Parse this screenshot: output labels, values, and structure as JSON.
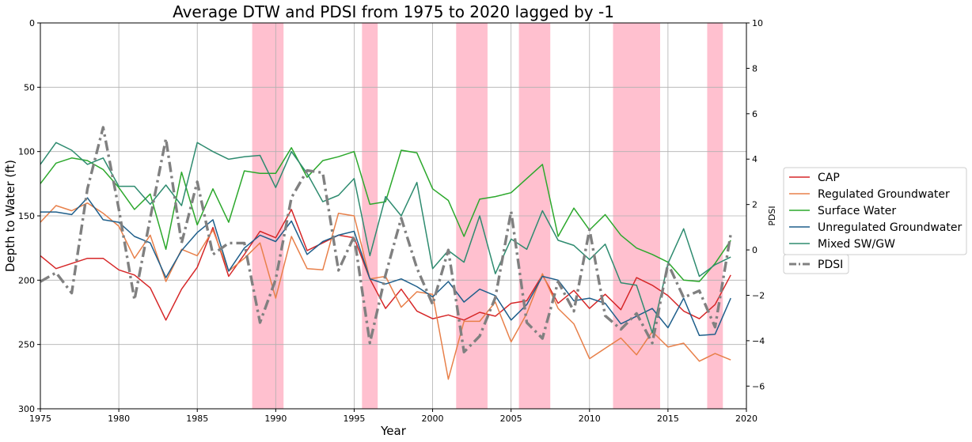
{
  "chart_data": {
    "type": "line",
    "title": "Average DTW and PDSI from 1975 to 2020 lagged by -1",
    "xlabel": "Year",
    "ylabel": "Depth to Water (ft)",
    "y2label": "PDSI",
    "xlim": [
      1975,
      2020
    ],
    "ylim": [
      300,
      0
    ],
    "y2lim": [
      -7,
      10
    ],
    "x_ticks": [
      1975,
      1980,
      1985,
      1990,
      1995,
      2000,
      2005,
      2010,
      2015,
      2020
    ],
    "y_ticks": [
      0,
      50,
      100,
      150,
      200,
      250,
      300
    ],
    "y2_ticks": [
      -6,
      -4,
      -2,
      0,
      2,
      4,
      6,
      8,
      10
    ],
    "grid": true,
    "legend_placement": "outside-right",
    "drought_spans": [
      [
        1988.5,
        1990.5
      ],
      [
        1995.5,
        1996.5
      ],
      [
        2001.5,
        2003.5
      ],
      [
        2005.5,
        2007.5
      ],
      [
        2011.5,
        2014.5
      ],
      [
        2017.5,
        2018.5
      ]
    ],
    "drought_color": "#ffc0cf",
    "x": [
      1975,
      1976,
      1977,
      1978,
      1979,
      1980,
      1981,
      1982,
      1983,
      1984,
      1985,
      1986,
      1987,
      1988,
      1989,
      1990,
      1991,
      1992,
      1993,
      1994,
      1995,
      1996,
      1997,
      1998,
      1999,
      2000,
      2001,
      2002,
      2003,
      2004,
      2005,
      2006,
      2007,
      2008,
      2009,
      2010,
      2011,
      2012,
      2013,
      2014,
      2015,
      2016,
      2017,
      2018,
      2019
    ],
    "series": [
      {
        "name": "CAP",
        "axis": "left",
        "color": "#d62728",
        "style": "solid",
        "values": [
          181,
          191,
          187,
          183,
          183,
          192,
          196,
          206,
          231,
          207,
          190,
          159,
          197,
          180,
          162,
          167,
          145,
          177,
          171,
          165,
          167,
          199,
          222,
          207,
          224,
          230,
          227,
          231,
          225,
          228,
          218,
          216,
          196,
          218,
          208,
          222,
          211,
          223,
          198,
          204,
          212,
          224,
          230,
          219,
          196
        ]
      },
      {
        "name": "Regulated Groundwater",
        "axis": "left",
        "color": "#e8804a",
        "style": "solid",
        "values": [
          155,
          142,
          146,
          140,
          148,
          158,
          183,
          165,
          201,
          176,
          181,
          161,
          193,
          183,
          171,
          214,
          166,
          191,
          192,
          148,
          150,
          199,
          197,
          221,
          209,
          211,
          277,
          232,
          232,
          217,
          248,
          226,
          195,
          222,
          234,
          261,
          253,
          245,
          258,
          240,
          252,
          249,
          263,
          257,
          262
        ]
      },
      {
        "name": "Surface Water",
        "axis": "left",
        "color": "#2ca82c",
        "style": "solid",
        "values": [
          125,
          109,
          105,
          107,
          114,
          128,
          145,
          133,
          176,
          116,
          157,
          129,
          155,
          115,
          117,
          117,
          97,
          120,
          107,
          104,
          100,
          141,
          139,
          99,
          101,
          129,
          138,
          166,
          137,
          135,
          132,
          121,
          110,
          166,
          144,
          161,
          149,
          165,
          175,
          180,
          186,
          200,
          201,
          187,
          169
        ]
      },
      {
        "name": "Unregulated Groundwater",
        "axis": "left",
        "color": "#1f5f8b",
        "style": "solid",
        "values": [
          147,
          147,
          149,
          136,
          153,
          155,
          166,
          171,
          198,
          177,
          163,
          153,
          193,
          175,
          165,
          170,
          154,
          180,
          170,
          165,
          162,
          199,
          203,
          199,
          205,
          213,
          201,
          217,
          207,
          212,
          231,
          219,
          197,
          200,
          216,
          214,
          218,
          234,
          228,
          222,
          237,
          214,
          243,
          242,
          214
        ]
      },
      {
        "name": "Mixed SW/GW",
        "axis": "left",
        "color": "#2e8b6f",
        "style": "solid",
        "values": [
          110,
          93,
          99,
          110,
          105,
          127,
          127,
          141,
          126,
          142,
          93,
          100,
          106,
          104,
          103,
          128,
          100,
          117,
          139,
          134,
          121,
          181,
          135,
          150,
          124,
          191,
          177,
          186,
          150,
          195,
          168,
          176,
          146,
          169,
          173,
          184,
          172,
          202,
          204,
          241,
          187,
          160,
          197,
          188,
          182
        ]
      },
      {
        "name": "PDSI",
        "axis": "right",
        "color": "#808080",
        "style": "dashdot",
        "values": [
          -1.4,
          -1,
          -1.9,
          2.7,
          5.4,
          1.8,
          -2.2,
          1.4,
          4.9,
          0.3,
          3,
          -0.2,
          0.3,
          0.3,
          -3.2,
          -1.3,
          2.3,
          3.5,
          3.4,
          -0.9,
          0.6,
          -4.1,
          -1.1,
          1.4,
          -0.8,
          -2.4,
          0,
          -4.5,
          -3.8,
          -2.1,
          1.7,
          -3.2,
          -3.9,
          -1.4,
          -2.7,
          0.9,
          -2.9,
          -3.5,
          -2.8,
          -4.1,
          -0.6,
          -2.1,
          -1.8,
          -3.4,
          0.7
        ]
      }
    ]
  }
}
